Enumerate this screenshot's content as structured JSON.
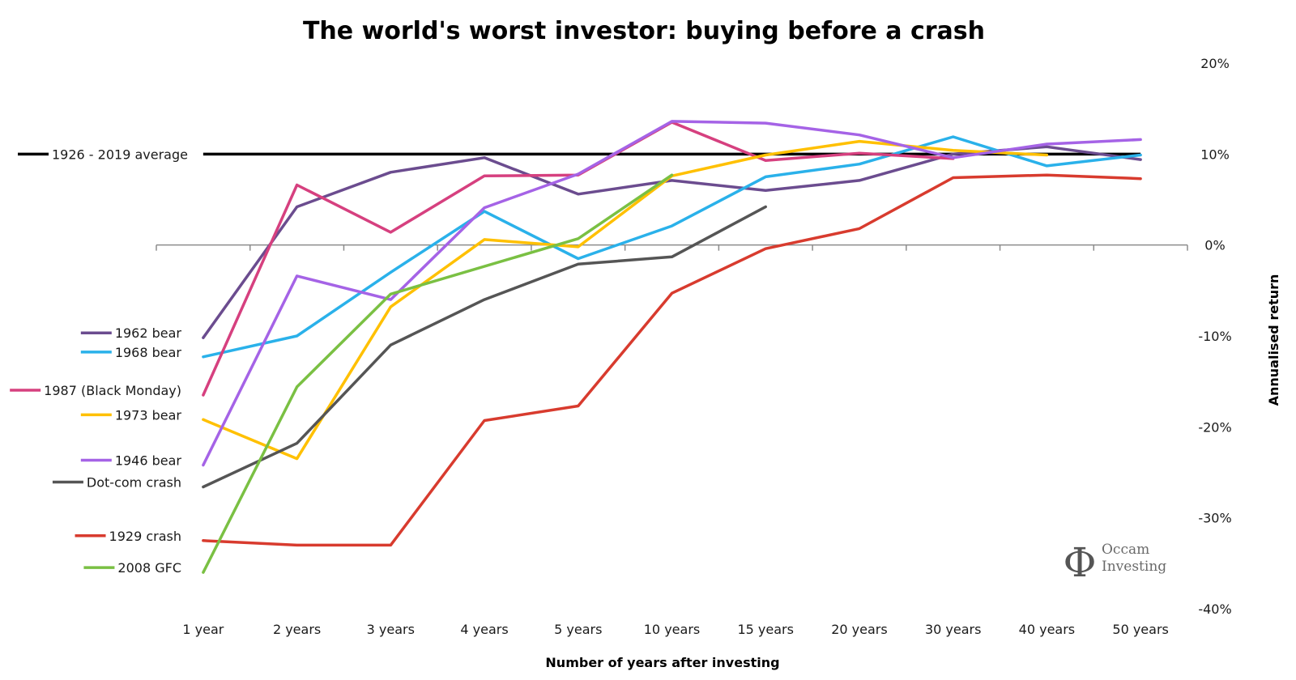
{
  "chart_data": {
    "type": "line",
    "title": "The world's worst investor: buying before a crash",
    "xlabel": "Number of years after investing",
    "ylabel": "Annualised return",
    "categories": [
      "1 year",
      "2 years",
      "3 years",
      "4 years",
      "5 years",
      "10 years",
      "15 years",
      "20 years",
      "30 years",
      "40 years",
      "50 years"
    ],
    "ylim": [
      -40,
      20
    ],
    "yticks": [
      20,
      10,
      0,
      -10,
      -20,
      -30,
      -40
    ],
    "ytick_labels": [
      "20%",
      "10%",
      "0%",
      "-10%",
      "-20%",
      "-30%",
      "-40%"
    ],
    "y_axis_side": "right",
    "grid": false,
    "legend_placement": "left, inline",
    "reference_line": {
      "name": "1926 - 2019 average",
      "value": 10,
      "color": "#000000"
    },
    "series": [
      {
        "name": "1962 bear",
        "color": "#6b4c8f",
        "values": [
          -10.2,
          4.2,
          8.0,
          9.6,
          5.6,
          7.1,
          6.0,
          7.1,
          10.0,
          10.8,
          9.4
        ]
      },
      {
        "name": "1968 bear",
        "color": "#2ab1ea",
        "values": [
          -12.3,
          -10.0,
          -3.0,
          3.7,
          -1.5,
          2.1,
          7.5,
          8.9,
          11.9,
          8.7,
          9.9
        ]
      },
      {
        "name": "1987 (Black Monday)",
        "color": "#d6407f",
        "values": [
          -16.5,
          6.6,
          1.4,
          7.6,
          7.7,
          13.5,
          9.3,
          10.1,
          9.5,
          null,
          null
        ]
      },
      {
        "name": "1973 bear",
        "color": "#ffc000",
        "values": [
          -19.2,
          -23.5,
          -6.8,
          0.6,
          -0.2,
          7.6,
          9.9,
          11.4,
          10.4,
          9.9,
          null
        ]
      },
      {
        "name": "1946 bear",
        "color": "#a563e6",
        "values": [
          -24.2,
          -3.4,
          -6.0,
          4.1,
          7.8,
          13.6,
          13.4,
          12.1,
          9.6,
          11.1,
          11.6
        ]
      },
      {
        "name": "Dot-com crash",
        "color": "#555555",
        "values": [
          -26.6,
          -21.8,
          -11.0,
          -6.0,
          -2.1,
          -1.3,
          4.2,
          null,
          null,
          null,
          null
        ]
      },
      {
        "name": "1929 crash",
        "color": "#d83b2e",
        "values": [
          -32.5,
          -33.0,
          -33.0,
          -19.3,
          -17.7,
          -5.3,
          -0.4,
          1.8,
          7.4,
          7.7,
          7.3
        ]
      },
      {
        "name": "2008 GFC",
        "color": "#7ac043",
        "values": [
          -36.0,
          -15.6,
          -5.4,
          null,
          0.7,
          7.7,
          null,
          null,
          null,
          null,
          null
        ]
      }
    ]
  },
  "logo": {
    "symbol": "Φ",
    "line1": "Occam",
    "line2": "Investing"
  }
}
